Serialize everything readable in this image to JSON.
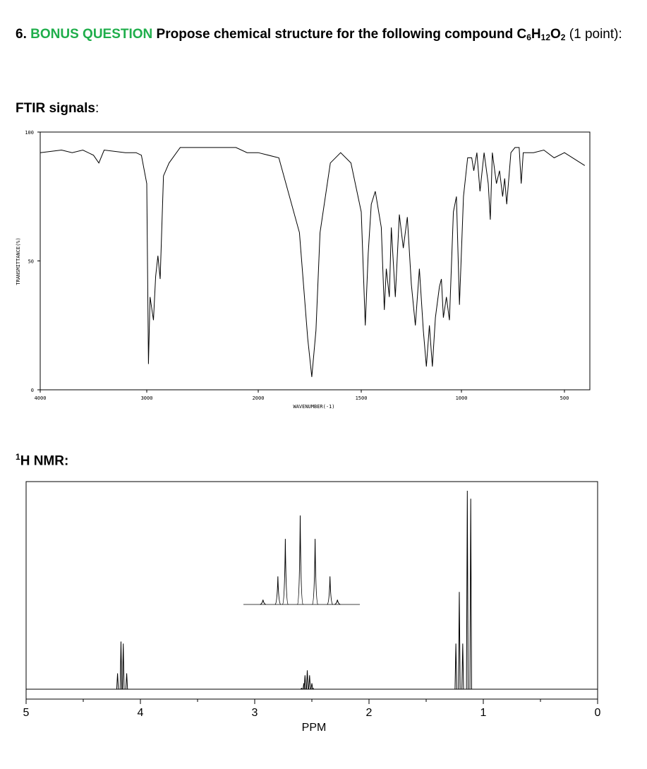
{
  "question": {
    "number": "6.",
    "label": "BONUS QUESTION",
    "text": "Propose chemical structure for the following compound",
    "formula": [
      {
        "el": "C",
        "n": "6"
      },
      {
        "el": "H",
        "n": "12"
      },
      {
        "el": "O",
        "n": "2"
      }
    ],
    "points": "(1 point):"
  },
  "ftir_heading": {
    "text": "FTIR signals",
    "punct": ":"
  },
  "nmr_heading": {
    "sup": "1",
    "text": "H NMR:"
  },
  "chart_data": [
    {
      "type": "line",
      "xlabel": "WAVENUMBER(-1)",
      "ylabel": "TRANSMITTANCE(%)",
      "x": [
        4000,
        3800,
        3700,
        3600,
        3500,
        3450,
        3400,
        3200,
        3100,
        3050,
        3000,
        2985,
        2970,
        2940,
        2920,
        2900,
        2880,
        2850,
        2800,
        2700,
        2500,
        2300,
        2200,
        2100,
        2000,
        1900,
        1800,
        1760,
        1740,
        1720,
        1700,
        1650,
        1600,
        1550,
        1500,
        1480,
        1465,
        1450,
        1430,
        1400,
        1385,
        1375,
        1360,
        1350,
        1330,
        1310,
        1290,
        1270,
        1250,
        1230,
        1210,
        1190,
        1175,
        1160,
        1145,
        1130,
        1110,
        1100,
        1090,
        1075,
        1060,
        1040,
        1025,
        1010,
        990,
        970,
        950,
        940,
        925,
        910,
        890,
        870,
        860,
        850,
        830,
        815,
        800,
        790,
        780,
        760,
        740,
        720,
        710,
        700,
        650,
        600,
        550,
        500,
        460
      ],
      "values": [
        92,
        93,
        92,
        93,
        91,
        88,
        93,
        92,
        92,
        91,
        80,
        10,
        36,
        27,
        44,
        52,
        43,
        83,
        88,
        94,
        94,
        94,
        94,
        92,
        92,
        90,
        61,
        20,
        5,
        23,
        61,
        88,
        92,
        88,
        69,
        25,
        53,
        72,
        77,
        63,
        31,
        47,
        36,
        63,
        36,
        68,
        55,
        67,
        41,
        25,
        47,
        23,
        9,
        25,
        9,
        28,
        40,
        43,
        28,
        36,
        27,
        69,
        75,
        33,
        75,
        90,
        90,
        85,
        92,
        77,
        92,
        80,
        66,
        92,
        80,
        85,
        75,
        82,
        72,
        92,
        94,
        94,
        80,
        92,
        92,
        93,
        90,
        92,
        87
      ],
      "color": "#000000",
      "xlim": [
        4000,
        450
      ],
      "ylim": [
        0,
        100
      ],
      "xticks": [
        4000,
        3000,
        2000,
        1500,
        1000,
        500
      ],
      "yticks": [
        0,
        50,
        100
      ]
    },
    {
      "type": "stem",
      "xlabel": "PPM",
      "x": [
        4.2,
        4.17,
        4.15,
        4.12,
        2.59,
        2.57,
        2.56,
        2.54,
        2.52,
        2.5,
        2.49,
        1.24,
        1.21,
        1.18,
        1.14,
        1.11
      ],
      "values": [
        8,
        24,
        23,
        8,
        0.5,
        3,
        7,
        9.5,
        7,
        3,
        0.5,
        23,
        49,
        23,
        100,
        96
      ],
      "color": "#000000",
      "xlim": [
        5,
        0
      ],
      "xticks": [
        5,
        4,
        3,
        2,
        1,
        0
      ]
    }
  ]
}
